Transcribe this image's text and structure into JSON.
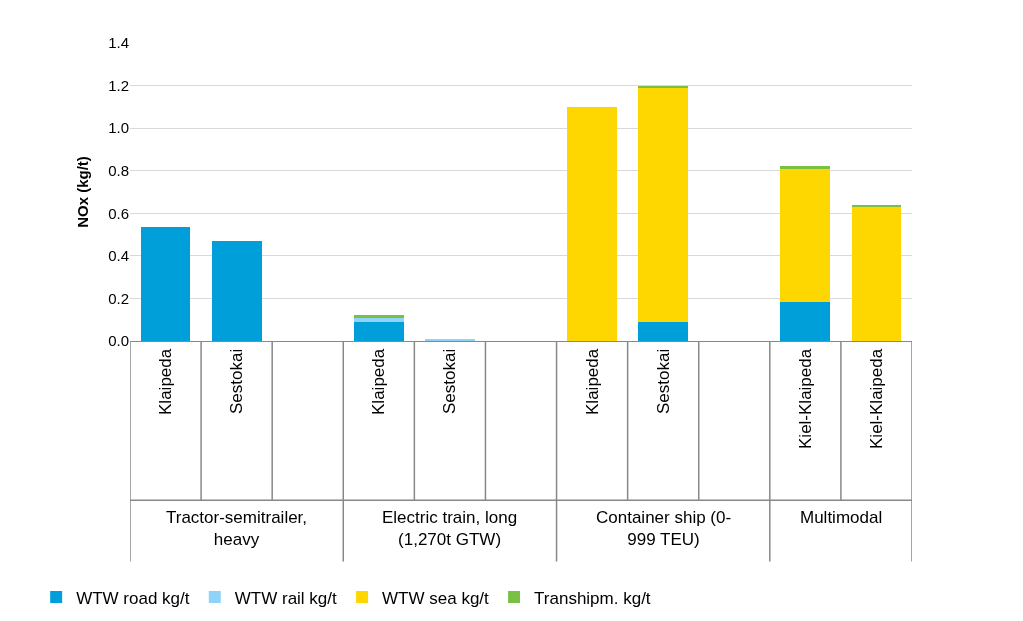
{
  "chart_data": {
    "type": "bar",
    "stacked": true,
    "categories": [
      "Klaipeda",
      "Sestokai",
      null,
      "Klaipeda",
      "Sestokai",
      null,
      "Klaipeda",
      "Sestokai",
      null,
      "Kiel-Klaipeda",
      "Kiel-Klaipeda"
    ],
    "series": [
      {
        "name": "WTW road kg/t",
        "color": "#009fd9",
        "values": [
          0.535,
          0.47,
          null,
          0.09,
          null,
          null,
          null,
          0.09,
          null,
          0.185,
          null
        ]
      },
      {
        "name": "WTW rail kg/t",
        "color": "#8fd3f9",
        "values": [
          null,
          null,
          null,
          0.02,
          0.01,
          null,
          null,
          null,
          null,
          null,
          null
        ]
      },
      {
        "name": "WTW sea kg/t",
        "color": "#ffd700",
        "values": [
          null,
          null,
          null,
          null,
          null,
          null,
          1.1,
          1.1,
          null,
          0.625,
          0.63
        ]
      },
      {
        "name": "Transhipm. kg/t",
        "color": "#7ac143",
        "values": [
          null,
          null,
          null,
          0.01,
          null,
          null,
          null,
          0.01,
          null,
          0.01,
          0.01
        ]
      }
    ],
    "ylabel": "NOx (kg/t)",
    "ylim": [
      0,
      1.4
    ],
    "yticks": [
      {
        "value": 0,
        "label": "0.0"
      },
      {
        "value": 0.2,
        "label": "0.2"
      },
      {
        "value": 0.4,
        "label": "0.4"
      },
      {
        "value": 0.6,
        "label": "0.6"
      },
      {
        "value": 0.8,
        "label": "0.8"
      },
      {
        "value": 1.0,
        "label": "1.0"
      },
      {
        "value": 1.2,
        "label": "1.2"
      },
      {
        "value": 1.4,
        "label": "1.4"
      }
    ],
    "annotations": [
      "Tractor-semitrailer,\nheavy",
      "Electric train, long\n(1,270t GTW)",
      "Container ship (0-\n999 TEU)",
      "Multimodal"
    ],
    "grid": "y",
    "legend": "bottom"
  }
}
